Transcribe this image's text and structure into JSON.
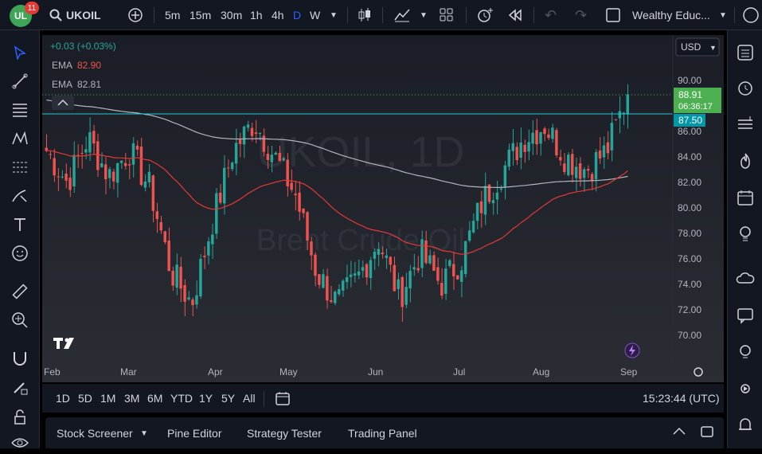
{
  "topbar": {
    "logo_text": "UL",
    "notification_count": "11",
    "symbol": "UKOIL",
    "intervals": [
      "5m",
      "15m",
      "30m",
      "1h",
      "4h",
      "D",
      "W"
    ],
    "active_interval": "D",
    "layout_name": "Wealthy Educ..."
  },
  "chart": {
    "watermark_symbol": "UKOIL, 1D",
    "watermark_desc": "Brent Crude Oil",
    "change_text": "+0.03 (+0.03%)",
    "ema1_label": "EMA",
    "ema1_value": "82.90",
    "ema2_label": "EMA",
    "ema2_value": "82.81",
    "currency": "USD",
    "price_ticks": [
      "90.00",
      "88.00",
      "86.00",
      "84.00",
      "82.00",
      "80.00",
      "78.00",
      "76.00",
      "74.00",
      "72.00",
      "70.00"
    ],
    "last_price": "88.91",
    "countdown": "06:36:17",
    "hline_price": "87.50",
    "time_ticks": [
      "Feb",
      "Mar",
      "Apr",
      "May",
      "Jun",
      "Jul",
      "Aug",
      "Sep"
    ],
    "colors": {
      "up": "#26a69a",
      "down": "#ef5350",
      "ema_red": "#e53935",
      "ema_gray": "#b2b5be",
      "hline": "#26c6da",
      "last": "#4caf50"
    }
  },
  "chart_data": {
    "type": "candlestick",
    "title": "UKOIL, 1D",
    "xlabel": "",
    "ylabel": "",
    "ylim": [
      68.0,
      92.0
    ],
    "x_ticks": [
      "Feb",
      "Mar",
      "Apr",
      "May",
      "Jun",
      "Jul",
      "Aug",
      "Sep"
    ],
    "last_close": 88.91,
    "horizontal_line": 87.5,
    "close_path": [
      {
        "x": "Feb",
        "close": 84.5
      },
      {
        "x": "Feb",
        "close": 82.0
      },
      {
        "x": "Feb",
        "close": 85.5
      },
      {
        "x": "Mar",
        "close": 82.5
      },
      {
        "x": "Mar",
        "close": 84.5
      },
      {
        "x": "Mar",
        "close": 81.5
      },
      {
        "x": "Mar",
        "close": 75.0
      },
      {
        "x": "Mar",
        "close": 72.5
      },
      {
        "x": "Apr",
        "close": 79.0
      },
      {
        "x": "Apr",
        "close": 84.5
      },
      {
        "x": "Apr",
        "close": 86.8
      },
      {
        "x": "May",
        "close": 84.0
      },
      {
        "x": "May",
        "close": 81.0
      },
      {
        "x": "May",
        "close": 75.0
      },
      {
        "x": "May",
        "close": 72.5
      },
      {
        "x": "May",
        "close": 74.5
      },
      {
        "x": "Jun",
        "close": 77.5
      },
      {
        "x": "Jun",
        "close": 73.0
      },
      {
        "x": "Jun",
        "close": 76.5
      },
      {
        "x": "Jun",
        "close": 74.0
      },
      {
        "x": "Jul",
        "close": 76.0
      },
      {
        "x": "Jul",
        "close": 80.5
      },
      {
        "x": "Jul",
        "close": 83.0
      },
      {
        "x": "Aug",
        "close": 85.5
      },
      {
        "x": "Aug",
        "close": 86.5
      },
      {
        "x": "Aug",
        "close": 84.0
      },
      {
        "x": "Aug",
        "close": 83.0
      },
      {
        "x": "Sep",
        "close": 84.5
      },
      {
        "x": "Sep",
        "close": 88.91
      }
    ],
    "series": [
      {
        "name": "EMA",
        "last": 82.9
      },
      {
        "name": "EMA",
        "last": 82.81
      }
    ]
  },
  "range": {
    "buttons": [
      "1D",
      "5D",
      "1M",
      "3M",
      "6M",
      "YTD",
      "1Y",
      "5Y",
      "All"
    ],
    "clock": "15:23:44 (UTC)"
  },
  "bottom": {
    "stock_screener": "Stock Screener",
    "pine_editor": "Pine Editor",
    "strategy_tester": "Strategy Tester",
    "trading_panel": "Trading Panel"
  }
}
